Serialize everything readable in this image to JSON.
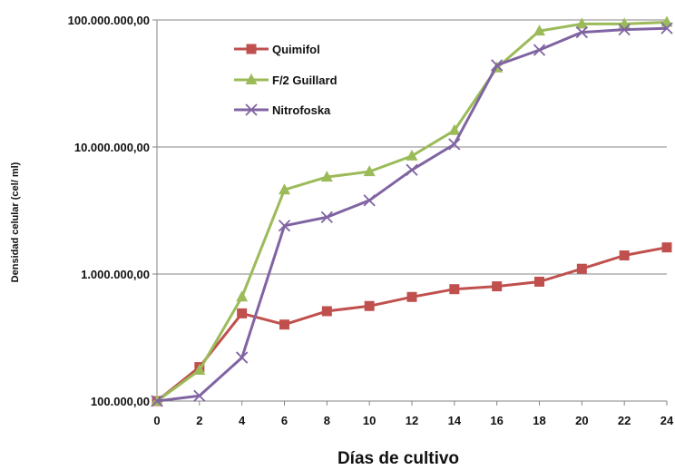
{
  "chart_data": {
    "type": "line",
    "xlabel": "Días de cultivo",
    "ylabel": "Densidad celular (cel/ ml)",
    "yscale": "log",
    "ylim": [
      100000,
      100000000
    ],
    "xlim": [
      0,
      24
    ],
    "x": [
      0,
      2,
      4,
      6,
      8,
      10,
      12,
      14,
      16,
      18,
      20,
      22,
      24
    ],
    "x_tick_labels": [
      "0",
      "2",
      "4",
      "6",
      "8",
      "10",
      "12",
      "14",
      "16",
      "18",
      "20",
      "22",
      "24"
    ],
    "y_tick_labels": [
      "100.000,00",
      "1.000.000,00",
      "10.000.000,00",
      "100.000.000,00"
    ],
    "grid": "horizontal",
    "legend_position": "top-left",
    "series": [
      {
        "name": "Quimifol",
        "color": "#c0504d",
        "marker": "square",
        "values": [
          100000,
          185000,
          490000,
          400000,
          510000,
          560000,
          660000,
          760000,
          800000,
          870000,
          1100000,
          1400000,
          1620000
        ]
      },
      {
        "name": "F/2 Guillard",
        "color": "#9bbb59",
        "marker": "triangle",
        "values": [
          100000,
          175000,
          660000,
          4600000,
          5800000,
          6400000,
          8500000,
          13500000,
          42000000,
          82000000,
          93000000,
          93000000,
          96000000
        ]
      },
      {
        "name": "Nitrofoska",
        "color": "#8064a2",
        "marker": "x",
        "values": [
          100000,
          110000,
          220000,
          2400000,
          2800000,
          3800000,
          6600000,
          10500000,
          44000000,
          58000000,
          80000000,
          84000000,
          86000000
        ]
      }
    ]
  }
}
